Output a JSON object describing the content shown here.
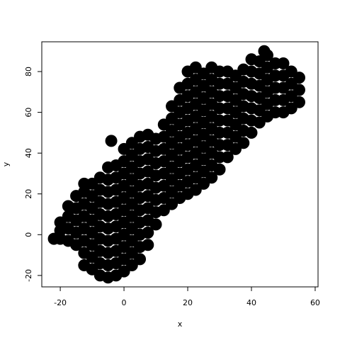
{
  "chart_data": {
    "type": "scatter",
    "xlabel": "x",
    "ylabel": "y",
    "color": "#000000",
    "xlim": [
      -25.8,
      60.9
    ],
    "ylim": [
      -25.6,
      94.6
    ],
    "xticks": [
      -20,
      0,
      20,
      40,
      60
    ],
    "yticks": [
      -20,
      0,
      20,
      40,
      60,
      80
    ],
    "x": [
      -20,
      -20,
      -20,
      -17.5,
      -17.5,
      -17.5,
      -17.5,
      -15,
      -15,
      -15,
      -15,
      -15,
      -12.5,
      -12.5,
      -12.5,
      -12.5,
      -12.5,
      -12.5,
      -12.5,
      -12.5,
      -10,
      -10,
      -10,
      -10,
      -10,
      -10,
      -10,
      -10,
      -7.5,
      -7.5,
      -7.5,
      -7.5,
      -7.5,
      -7.5,
      -7.5,
      -7.5,
      -7.5,
      -5,
      -5,
      -5,
      -5,
      -5,
      -5,
      -5,
      -5,
      -5,
      -5,
      -2.5,
      -2.5,
      -2.5,
      -2.5,
      -2.5,
      -2.5,
      -2.5,
      -2.5,
      -2.5,
      -2.5,
      0,
      0,
      0,
      0,
      0,
      0,
      0,
      0,
      0,
      0,
      0,
      2.5,
      2.5,
      2.5,
      2.5,
      2.5,
      2.5,
      2.5,
      2.5,
      2.5,
      2.5,
      2.5,
      5,
      5,
      5,
      5,
      5,
      5,
      5,
      5,
      5,
      5,
      5,
      7.5,
      7.5,
      7.5,
      7.5,
      7.5,
      7.5,
      7.5,
      7.5,
      7.5,
      7.5,
      10,
      10,
      10,
      10,
      10,
      10,
      10,
      10,
      12.5,
      12.5,
      12.5,
      12.5,
      12.5,
      12.5,
      12.5,
      12.5,
      15,
      15,
      15,
      15,
      15,
      15,
      15,
      15,
      15,
      17.5,
      17.5,
      17.5,
      17.5,
      17.5,
      17.5,
      17.5,
      17.5,
      17.5,
      17.5,
      20,
      20,
      20,
      20,
      20,
      20,
      20,
      20,
      20,
      20,
      20,
      22.5,
      22.5,
      22.5,
      22.5,
      22.5,
      22.5,
      22.5,
      22.5,
      22.5,
      22.5,
      22.5,
      25,
      25,
      25,
      25,
      25,
      25,
      25,
      25,
      25,
      25,
      27.5,
      27.5,
      27.5,
      27.5,
      27.5,
      27.5,
      27.5,
      27.5,
      27.5,
      27.5,
      30,
      30,
      30,
      30,
      30,
      30,
      30,
      30,
      30,
      32.5,
      32.5,
      32.5,
      32.5,
      32.5,
      32.5,
      32.5,
      32.5,
      35,
      35,
      35,
      35,
      35,
      35,
      35,
      37.5,
      37.5,
      37.5,
      37.5,
      37.5,
      37.5,
      37.5,
      40,
      40,
      40,
      40,
      40,
      40,
      40,
      42.5,
      42.5,
      42.5,
      42.5,
      42.5,
      42.5,
      45,
      45,
      45,
      45,
      45,
      45,
      47.5,
      47.5,
      47.5,
      47.5,
      47.5,
      50,
      50,
      50,
      50,
      50,
      52.5,
      52.5,
      52.5,
      52.5,
      55,
      55,
      55,
      -22,
      -4,
      44
    ],
    "values": [
      -2,
      2,
      6,
      -3,
      3,
      9,
      14,
      -5,
      1,
      7,
      13,
      19,
      -15,
      -9,
      -3,
      3,
      9,
      15,
      21,
      25,
      -17,
      -11,
      -5,
      1,
      7,
      13,
      19,
      25,
      -20,
      -14,
      -8,
      -2,
      4,
      10,
      16,
      22,
      28,
      -21,
      -15,
      -9,
      -3,
      3,
      9,
      15,
      21,
      27,
      33,
      -20,
      -14,
      -8,
      -2,
      4,
      10,
      16,
      22,
      28,
      34,
      -18,
      -12,
      -6,
      0,
      6,
      12,
      18,
      24,
      30,
      36,
      42,
      -15,
      -9,
      -3,
      3,
      9,
      15,
      21,
      27,
      33,
      39,
      45,
      -12,
      -6,
      0,
      6,
      12,
      18,
      24,
      30,
      36,
      42,
      48,
      -5,
      1,
      7,
      13,
      19,
      25,
      31,
      37,
      43,
      49,
      5,
      11,
      17,
      23,
      29,
      35,
      41,
      47,
      12,
      18,
      24,
      30,
      36,
      42,
      48,
      54,
      15,
      21,
      27,
      33,
      39,
      45,
      51,
      57,
      63,
      18,
      24,
      30,
      36,
      42,
      48,
      54,
      60,
      66,
      72,
      20,
      26,
      32,
      38,
      44,
      50,
      56,
      62,
      68,
      74,
      80,
      22,
      28,
      34,
      40,
      46,
      52,
      58,
      64,
      70,
      76,
      82,
      25,
      31,
      37,
      43,
      49,
      55,
      61,
      67,
      73,
      79,
      28,
      34,
      40,
      46,
      52,
      58,
      64,
      70,
      76,
      82,
      32,
      38,
      44,
      50,
      56,
      62,
      68,
      74,
      80,
      38,
      44,
      50,
      56,
      62,
      68,
      74,
      80,
      42,
      48,
      54,
      60,
      66,
      72,
      78,
      45,
      51,
      57,
      63,
      69,
      75,
      81,
      50,
      56,
      62,
      68,
      74,
      80,
      86,
      55,
      61,
      67,
      73,
      79,
      85,
      58,
      64,
      70,
      76,
      82,
      88,
      60,
      66,
      72,
      78,
      84,
      60,
      66,
      72,
      78,
      84,
      62,
      68,
      74,
      80,
      65,
      71,
      77,
      -2,
      46,
      90
    ]
  }
}
